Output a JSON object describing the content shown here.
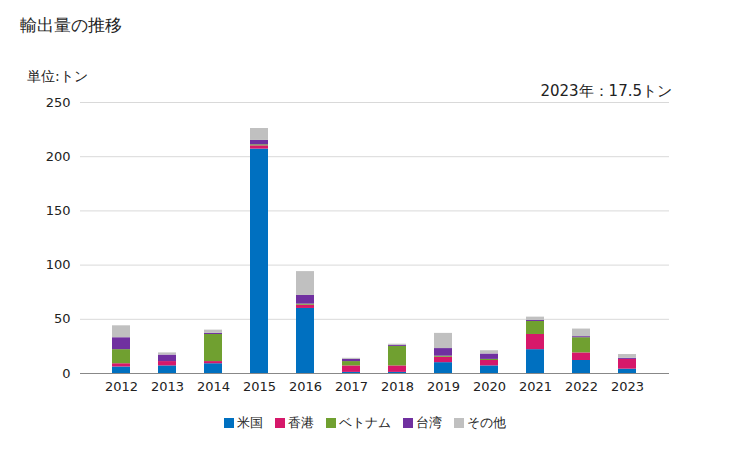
{
  "chart_data": {
    "type": "bar",
    "title": "輸出量の推移",
    "y_label": "単位:トン",
    "annotation": "2023年：17.5トン",
    "stacked": true,
    "categories": [
      "2012",
      "2013",
      "2014",
      "2015",
      "2016",
      "2017",
      "2018",
      "2019",
      "2020",
      "2021",
      "2022",
      "2023"
    ],
    "series": [
      {
        "name": "米国",
        "color": "#0070c0",
        "values": [
          6,
          7,
          9,
          207,
          60,
          1,
          1,
          10,
          7,
          22,
          12,
          4
        ]
      },
      {
        "name": "香港",
        "color": "#d6186a",
        "values": [
          3,
          4,
          2,
          3,
          3,
          6,
          6,
          5,
          5,
          14,
          7,
          9
        ]
      },
      {
        "name": "ベトナム",
        "color": "#70a030",
        "values": [
          13,
          0,
          25,
          1,
          1,
          4,
          18,
          1,
          1,
          12,
          14,
          0
        ]
      },
      {
        "name": "台湾",
        "color": "#7030a0",
        "values": [
          11,
          6,
          1,
          4,
          8,
          2,
          1,
          7,
          5,
          1,
          1,
          1
        ]
      },
      {
        "name": "その他",
        "color": "#c0c0c0",
        "values": [
          11,
          2,
          3,
          11,
          22,
          1,
          1,
          14,
          3,
          3,
          7,
          3.5
        ]
      }
    ],
    "ylim": [
      0,
      250
    ],
    "yticks": [
      0,
      50,
      100,
      150,
      200,
      250
    ],
    "grid": true,
    "legend": "bottom"
  }
}
